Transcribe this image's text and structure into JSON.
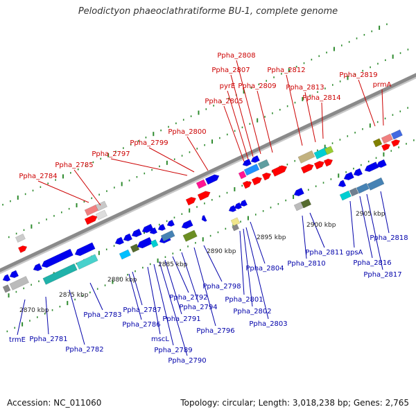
{
  "title": "Pelodictyon phaeoclathratiforme BU-1, complete genome",
  "accession": "Accession: NC_011060",
  "topology": "Topology: circular; Length: 3,018,238 bp; Genes: 2,765",
  "colors": {
    "axis": "#8a8a8a",
    "forward_label": "#cc0000",
    "reverse_label": "#0000aa",
    "tick_mark": "#2e8b2e",
    "scale_text": "#222222",
    "arrow_fwd": "#ff0000",
    "arrow_rev": "#0000ee"
  },
  "scale_labels": [
    "2870 kbp",
    "2875 kbp",
    "2880 kbp",
    "2885 kbp",
    "2890 kbp",
    "2895 kbp",
    "2900 kbp",
    "2905 kbp"
  ],
  "forward_genes": [
    "Ppha_2784",
    "Ppha_2785",
    "Ppha_2797",
    "Ppha_2799",
    "Ppha_2800",
    "Ppha_2805",
    "pyrE",
    "Ppha_2807",
    "Ppha_2808",
    "Ppha_2809",
    "Ppha_2812",
    "Ppha_2813",
    "Ppha_2814",
    "Ppha_2819",
    "prmA"
  ],
  "reverse_genes": [
    "trmE",
    "Ppha_2781",
    "Ppha_2782",
    "Ppha_2783",
    "Ppha_2786",
    "Ppha_2787",
    "mscL",
    "Ppha_2789",
    "Ppha_2790",
    "Ppha_2791",
    "Ppha_2792",
    "Ppha_2794",
    "Ppha_2796",
    "Ppha_2798",
    "Ppha_2801",
    "Ppha_2802",
    "Ppha_2803",
    "Ppha_2804",
    "Ppha_2810",
    "Ppha_2811",
    "gpsA",
    "Ppha_2816",
    "Ppha_2817",
    "Ppha_2818"
  ]
}
